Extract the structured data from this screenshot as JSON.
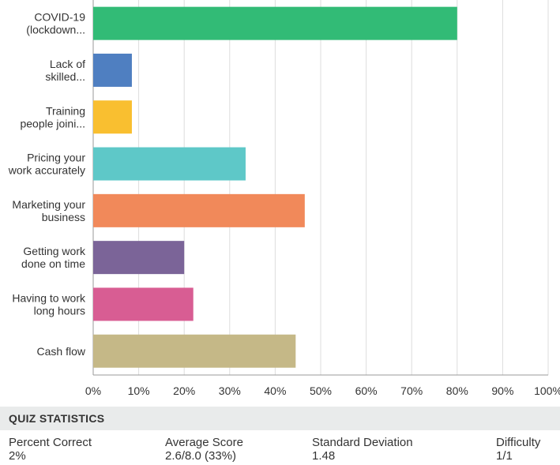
{
  "chart_data": {
    "type": "bar",
    "orientation": "horizontal",
    "categories": [
      [
        "COVID-19",
        "(lockdown..."
      ],
      [
        "Lack of",
        "skilled..."
      ],
      [
        "Training",
        "people joini..."
      ],
      [
        "Pricing your",
        "work accurately"
      ],
      [
        "Marketing your",
        "business"
      ],
      [
        "Getting work",
        "done on time"
      ],
      [
        "Having to work",
        "long hours"
      ],
      [
        "Cash flow"
      ]
    ],
    "values": [
      80,
      8.5,
      8.5,
      33.5,
      46.5,
      20,
      22,
      44.5
    ],
    "colors": [
      "#32bb76",
      "#4f7fc1",
      "#f9bf30",
      "#5ec8c8",
      "#f1895a",
      "#7b6498",
      "#d85d93",
      "#c5b887"
    ],
    "xticks": [
      "0%",
      "10%",
      "20%",
      "30%",
      "40%",
      "50%",
      "60%",
      "70%",
      "80%",
      "90%",
      "100%"
    ],
    "xlim": [
      0,
      100
    ],
    "grid": true
  },
  "quiz": {
    "title": "QUIZ STATISTICS",
    "stats": [
      {
        "label": "Percent Correct",
        "value": "2%"
      },
      {
        "label": "Average Score",
        "value": "2.6/8.0 (33%)"
      },
      {
        "label": "Standard Deviation",
        "value": "1.48"
      },
      {
        "label": "Difficulty",
        "value": "1/1"
      }
    ]
  }
}
